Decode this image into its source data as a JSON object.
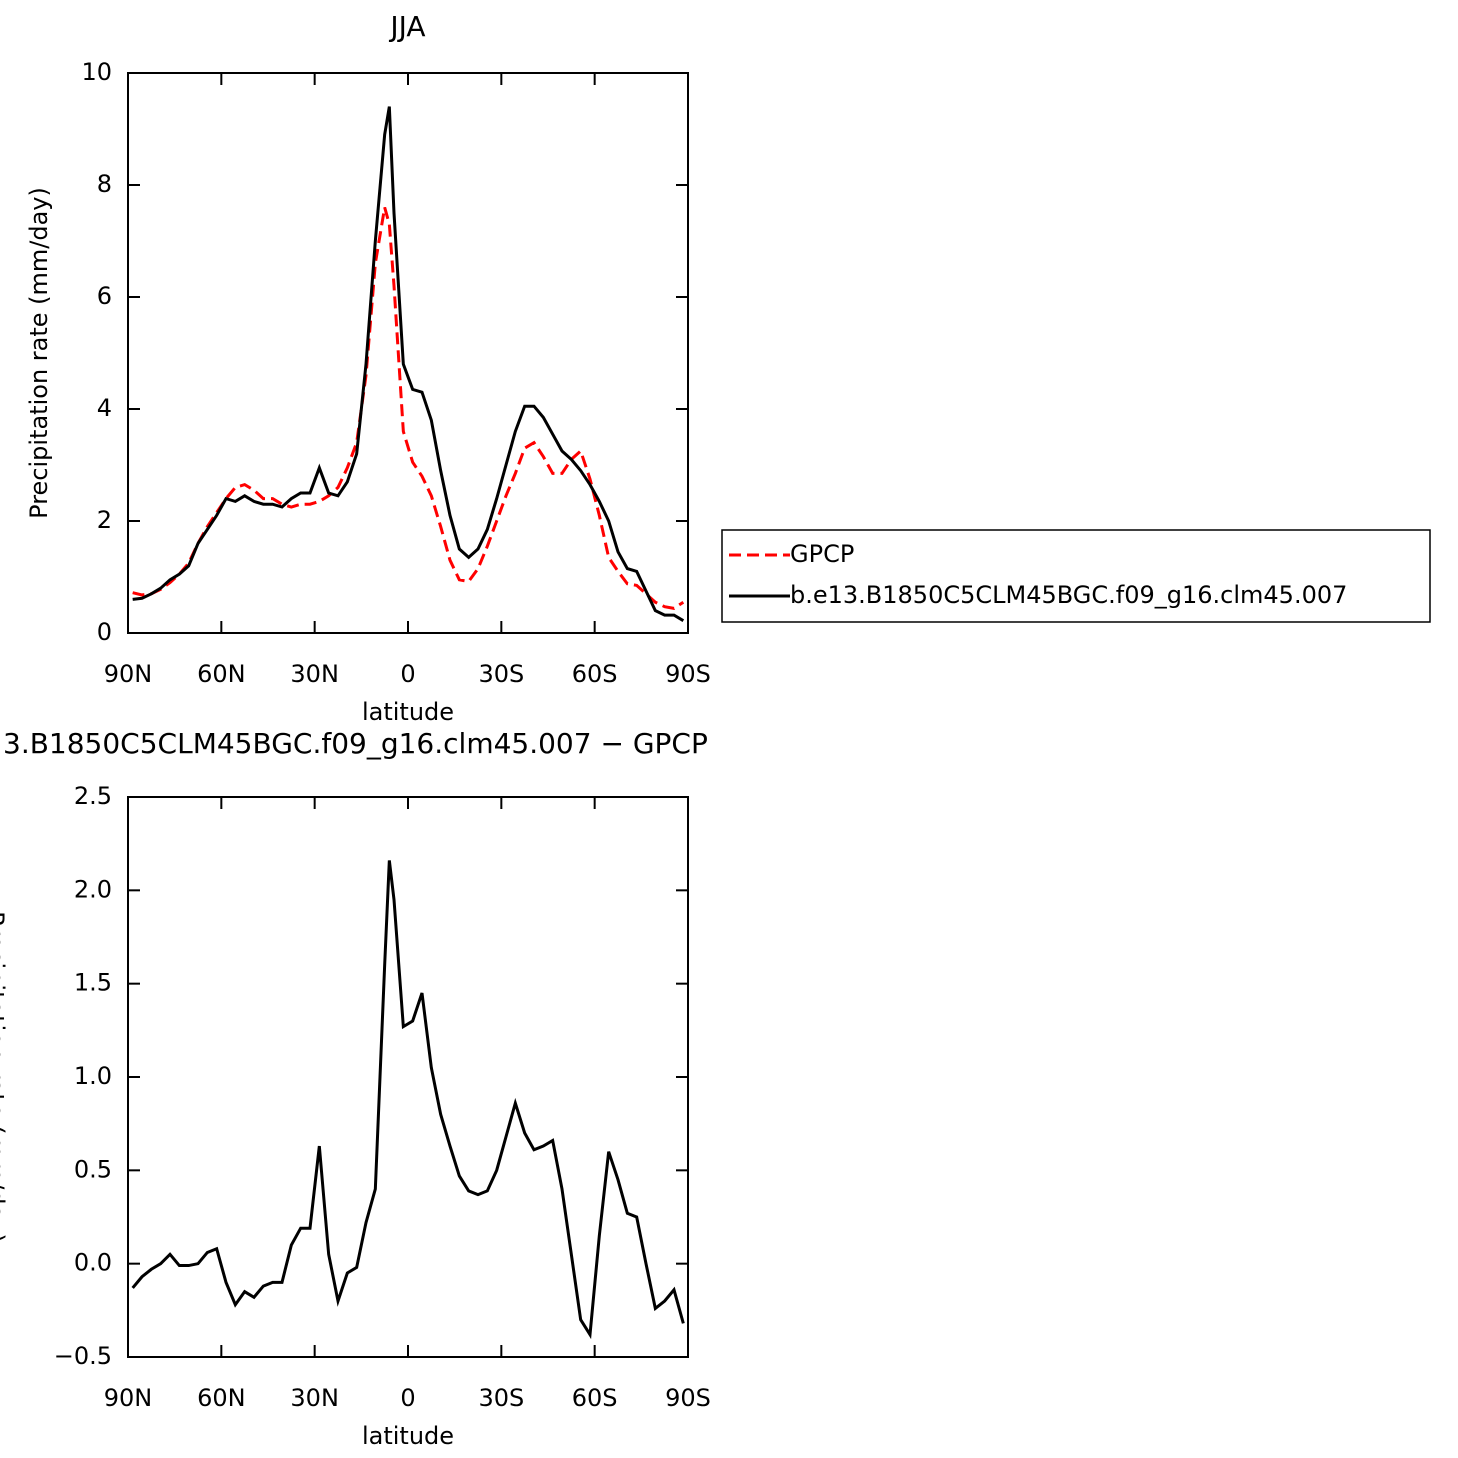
{
  "chart_data": [
    {
      "type": "line",
      "title": "JJA",
      "ylabel": "Precipitation rate (mm/day)",
      "xlabel": "latitude",
      "x": [
        88.5,
        85.5,
        82.5,
        79.5,
        76.5,
        73.5,
        70.5,
        67.5,
        64.5,
        61.5,
        58.5,
        55.5,
        52.5,
        49.5,
        46.5,
        43.5,
        40.5,
        37.5,
        34.5,
        31.5,
        28.5,
        25.5,
        22.5,
        19.5,
        16.5,
        13.5,
        10.5,
        7.5,
        6,
        4.5,
        1.5,
        -1.5,
        -4.5,
        -7.5,
        -10.5,
        -13.5,
        -16.5,
        -19.5,
        -22.5,
        -25.5,
        -28.5,
        -31.5,
        -34.5,
        -37.5,
        -40.5,
        -43.5,
        -46.5,
        -49.5,
        -52.5,
        -55.5,
        -58.5,
        -61.5,
        -64.5,
        -67.5,
        -70.5,
        -73.5,
        -76.5,
        -79.5,
        -82.5,
        -85.5,
        -88.5
      ],
      "series": [
        {
          "name": "GPCP",
          "color": "#ff0000",
          "linestyle": "dashed",
          "values": [
            0.72,
            0.68,
            0.7,
            0.78,
            0.9,
            1.05,
            1.25,
            1.6,
            1.9,
            2.15,
            2.4,
            2.6,
            2.65,
            2.55,
            2.4,
            2.4,
            2.3,
            2.25,
            2.3,
            2.3,
            2.35,
            2.45,
            2.6,
            2.95,
            3.4,
            4.6,
            6.6,
            7.6,
            7.3,
            6.2,
            3.6,
            3.05,
            2.8,
            2.45,
            1.9,
            1.3,
            0.95,
            0.92,
            1.15,
            1.55,
            2.0,
            2.45,
            2.85,
            3.3,
            3.4,
            3.15,
            2.85,
            2.85,
            3.1,
            3.25,
            2.75,
            2.1,
            1.35,
            1.1,
            0.88,
            0.85,
            0.7,
            0.55,
            0.47,
            0.44,
            0.55
          ]
        },
        {
          "name": "b.e13.B1850C5CLM45BGC.f09_g16.clm45.007",
          "color": "#000000",
          "linestyle": "solid",
          "values": [
            0.6,
            0.62,
            0.7,
            0.8,
            0.95,
            1.05,
            1.2,
            1.6,
            1.85,
            2.1,
            2.4,
            2.35,
            2.45,
            2.35,
            2.3,
            2.3,
            2.25,
            2.4,
            2.5,
            2.5,
            2.95,
            2.5,
            2.45,
            2.7,
            3.2,
            4.8,
            7.0,
            8.9,
            9.4,
            7.5,
            4.8,
            4.35,
            4.3,
            3.8,
            2.9,
            2.1,
            1.5,
            1.35,
            1.5,
            1.85,
            2.4,
            3.0,
            3.6,
            4.05,
            4.05,
            3.85,
            3.55,
            3.25,
            3.1,
            2.9,
            2.65,
            2.35,
            2.0,
            1.45,
            1.15,
            1.1,
            0.75,
            0.4,
            0.32,
            0.32,
            0.22
          ]
        }
      ],
      "xlim": [
        90,
        -90
      ],
      "xticks": [
        {
          "value": 90,
          "label": "90N"
        },
        {
          "value": 60,
          "label": "60N"
        },
        {
          "value": 30,
          "label": "30N"
        },
        0,
        {
          "value": -30,
          "label": "30S"
        },
        {
          "value": -60,
          "label": "60S"
        },
        {
          "value": -90,
          "label": "90S"
        }
      ],
      "ylim": [
        0,
        10
      ],
      "yticks": [
        0,
        2,
        4,
        6,
        8,
        10
      ],
      "legend": "right"
    },
    {
      "type": "line",
      "title": "3.B1850C5CLM45BGC.f09_g16.clm45.007 − GPCP",
      "ylabel": "Precipitation rate (mm/day)",
      "xlabel": "latitude",
      "x": [
        88.5,
        85.5,
        82.5,
        79.5,
        76.5,
        73.5,
        70.5,
        67.5,
        64.5,
        61.5,
        58.5,
        55.5,
        52.5,
        49.5,
        46.5,
        43.5,
        40.5,
        37.5,
        34.5,
        31.5,
        28.5,
        25.5,
        22.5,
        19.5,
        16.5,
        13.5,
        10.5,
        7.5,
        6,
        4.5,
        1.5,
        -1.5,
        -4.5,
        -7.5,
        -10.5,
        -13.5,
        -16.5,
        -19.5,
        -22.5,
        -25.5,
        -28.5,
        -31.5,
        -34.5,
        -37.5,
        -40.5,
        -43.5,
        -46.5,
        -49.5,
        -52.5,
        -55.5,
        -58.5,
        -61.5,
        -64.5,
        -67.5,
        -70.5,
        -73.5,
        -76.5,
        -79.5,
        -82.5,
        -85.5,
        -88.5
      ],
      "color": "#000000",
      "values": [
        -0.13,
        -0.07,
        -0.03,
        0.0,
        0.05,
        -0.01,
        -0.01,
        0.0,
        0.06,
        0.08,
        -0.1,
        -0.22,
        -0.15,
        -0.18,
        -0.12,
        -0.1,
        -0.1,
        0.1,
        0.19,
        0.19,
        0.63,
        0.05,
        -0.2,
        -0.05,
        -0.02,
        0.22,
        0.4,
        1.6,
        2.16,
        1.95,
        1.27,
        1.3,
        1.45,
        1.05,
        0.8,
        0.63,
        0.47,
        0.39,
        0.37,
        0.39,
        0.5,
        0.68,
        0.86,
        0.7,
        0.61,
        0.63,
        0.66,
        0.4,
        0.05,
        -0.3,
        -0.38,
        0.15,
        0.6,
        0.45,
        0.27,
        0.25,
        0.0,
        -0.24,
        -0.2,
        -0.14,
        -0.32
      ],
      "xlim": [
        90,
        -90
      ],
      "xticks": [
        {
          "value": 90,
          "label": "90N"
        },
        {
          "value": 60,
          "label": "60N"
        },
        {
          "value": 30,
          "label": "30N"
        },
        0,
        {
          "value": -30,
          "label": "30S"
        },
        {
          "value": -60,
          "label": "60S"
        },
        {
          "value": -90,
          "label": "90S"
        }
      ],
      "ylim": [
        -0.5,
        2.5
      ],
      "yticks": [
        {
          "value": -0.5,
          "label": "−0.5"
        },
        {
          "value": 0,
          "label": "0.0"
        },
        0.5,
        {
          "value": 1,
          "label": "1.0"
        },
        1.5,
        {
          "value": 2,
          "label": "2.0"
        },
        2.5
      ]
    }
  ]
}
